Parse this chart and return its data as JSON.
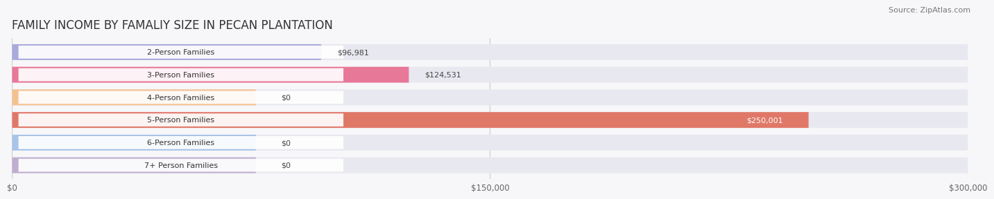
{
  "title": "FAMILY INCOME BY FAMALIY SIZE IN PECAN PLANTATION",
  "source": "Source: ZipAtlas.com",
  "categories": [
    "2-Person Families",
    "3-Person Families",
    "4-Person Families",
    "5-Person Families",
    "6-Person Families",
    "7+ Person Families"
  ],
  "values": [
    96981,
    124531,
    0,
    250001,
    0,
    0
  ],
  "bar_colors": [
    "#aaaadd",
    "#e87898",
    "#f5c090",
    "#e07868",
    "#a8c4e8",
    "#c0aed0"
  ],
  "bar_bg_color": "#e8e8f0",
  "xlim": [
    0,
    300000
  ],
  "xticks": [
    0,
    150000,
    300000
  ],
  "xtick_labels": [
    "$0",
    "$150,000",
    "$300,000"
  ],
  "value_labels": [
    "$96,981",
    "$124,531",
    "$0",
    "$250,001",
    "$0",
    "$0"
  ],
  "value_label_colors": [
    "#444444",
    "#444444",
    "#444444",
    "#ffffff",
    "#444444",
    "#444444"
  ],
  "title_fontsize": 12,
  "label_fontsize": 8,
  "tick_fontsize": 8.5,
  "source_fontsize": 8,
  "background_color": "#f7f7f9"
}
